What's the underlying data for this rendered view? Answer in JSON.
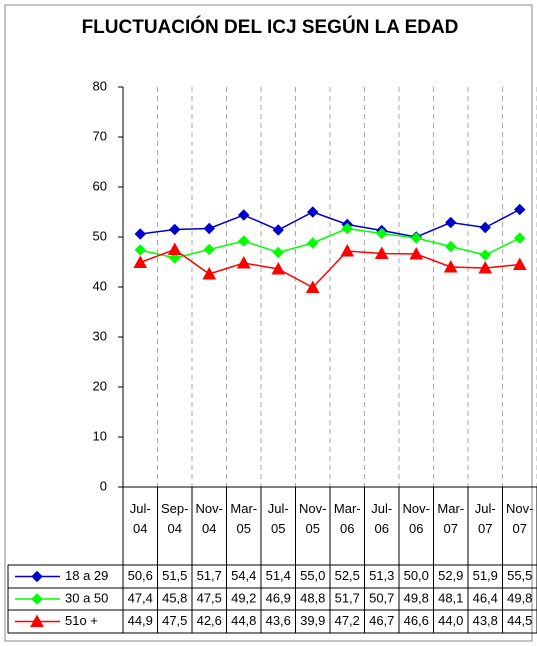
{
  "chart_data": {
    "type": "line",
    "title": "FLUCTUACIÓN DEL ICJ SEGÚN LA EDAD",
    "categories": [
      "Jul-04",
      "Sep-04",
      "Nov-04",
      "Mar-05",
      "Jul-05",
      "Nov-05",
      "Mar-06",
      "Jul-06",
      "Nov-06",
      "Mar-07",
      "Jul-07",
      "Nov-07"
    ],
    "series": [
      {
        "name": "18 a 29",
        "color": "#0000cc",
        "marker": "diamond",
        "values": [
          50.6,
          51.5,
          51.7,
          54.4,
          51.4,
          55.0,
          52.5,
          51.3,
          50.0,
          52.9,
          51.9,
          55.5
        ],
        "value_labels": [
          "50,6",
          "51,5",
          "51,7",
          "54,4",
          "51,4",
          "55,0",
          "52,5",
          "51,3",
          "50,0",
          "52,9",
          "51,9",
          "55,5"
        ]
      },
      {
        "name": "30 a 50",
        "color": "#00ff00",
        "marker": "diamond",
        "values": [
          47.4,
          45.8,
          47.5,
          49.2,
          46.9,
          48.8,
          51.7,
          50.7,
          49.8,
          48.1,
          46.4,
          49.8
        ],
        "value_labels": [
          "47,4",
          "45,8",
          "47,5",
          "49,2",
          "46,9",
          "48,8",
          "51,7",
          "50,7",
          "49,8",
          "48,1",
          "46,4",
          "49,8"
        ]
      },
      {
        "name": "51o +",
        "color": "#ff0000",
        "marker": "triangle",
        "values": [
          44.9,
          47.5,
          42.6,
          44.8,
          43.6,
          39.9,
          47.2,
          46.7,
          46.6,
          44.0,
          43.8,
          44.5
        ],
        "value_labels": [
          "44,9",
          "47,5",
          "42,6",
          "44,8",
          "43,6",
          "39,9",
          "47,2",
          "46,7",
          "46,6",
          "44,0",
          "43,8",
          "44,5"
        ]
      }
    ],
    "ylim": [
      0,
      80
    ],
    "yticks": [
      0,
      10,
      20,
      30,
      40,
      50,
      60,
      70,
      80
    ],
    "grid": "vertical-dashed"
  }
}
